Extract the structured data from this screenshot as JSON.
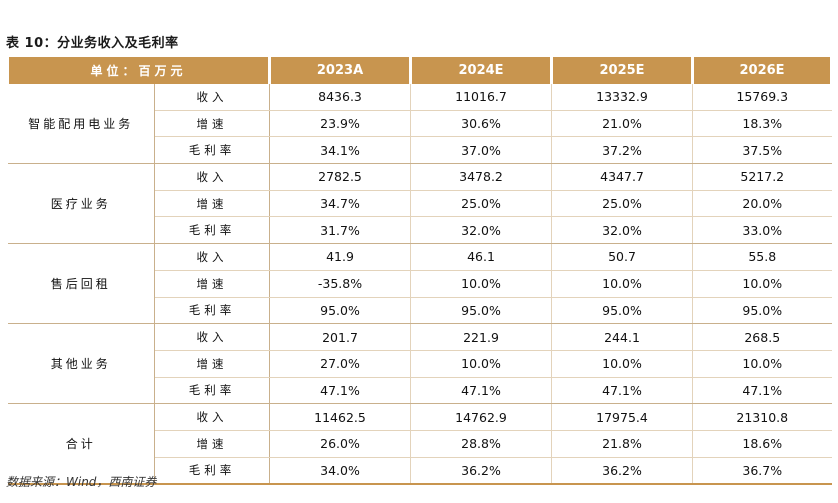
{
  "title": "表 10：分业务收入及毛利率",
  "header": {
    "unit_label": "单位：百万元",
    "years": [
      "2023A",
      "2024E",
      "2025E",
      "2026E"
    ]
  },
  "segments": [
    {
      "name": "智能配用电业务",
      "rows": [
        {
          "metric": "收入",
          "values": [
            "8436.3",
            "11016.7",
            "13332.9",
            "15769.3"
          ]
        },
        {
          "metric": "增速",
          "values": [
            "23.9%",
            "30.6%",
            "21.0%",
            "18.3%"
          ]
        },
        {
          "metric": "毛利率",
          "values": [
            "34.1%",
            "37.0%",
            "37.2%",
            "37.5%"
          ]
        }
      ]
    },
    {
      "name": "医疗业务",
      "rows": [
        {
          "metric": "收入",
          "values": [
            "2782.5",
            "3478.2",
            "4347.7",
            "5217.2"
          ]
        },
        {
          "metric": "增速",
          "values": [
            "34.7%",
            "25.0%",
            "25.0%",
            "20.0%"
          ]
        },
        {
          "metric": "毛利率",
          "values": [
            "31.7%",
            "32.0%",
            "32.0%",
            "33.0%"
          ]
        }
      ]
    },
    {
      "name": "售后回租",
      "rows": [
        {
          "metric": "收入",
          "values": [
            "41.9",
            "46.1",
            "50.7",
            "55.8"
          ]
        },
        {
          "metric": "增速",
          "values": [
            "-35.8%",
            "10.0%",
            "10.0%",
            "10.0%"
          ]
        },
        {
          "metric": "毛利率",
          "values": [
            "95.0%",
            "95.0%",
            "95.0%",
            "95.0%"
          ]
        }
      ]
    },
    {
      "name": "其他业务",
      "rows": [
        {
          "metric": "收入",
          "values": [
            "201.7",
            "221.9",
            "244.1",
            "268.5"
          ]
        },
        {
          "metric": "增速",
          "values": [
            "27.0%",
            "10.0%",
            "10.0%",
            "10.0%"
          ]
        },
        {
          "metric": "毛利率",
          "values": [
            "47.1%",
            "47.1%",
            "47.1%",
            "47.1%"
          ]
        }
      ]
    },
    {
      "name": "合计",
      "rows": [
        {
          "metric": "收入",
          "values": [
            "11462.5",
            "14762.9",
            "17975.4",
            "21310.8"
          ]
        },
        {
          "metric": "增速",
          "values": [
            "26.0%",
            "28.8%",
            "21.8%",
            "18.6%"
          ]
        },
        {
          "metric": "毛利率",
          "values": [
            "34.0%",
            "36.2%",
            "36.2%",
            "36.7%"
          ]
        }
      ]
    }
  ],
  "source": "数据来源：Wind，西南证券",
  "colors": {
    "header_bg": "#c8954f",
    "rule": "#c8954f",
    "grid": "#e3d3bb"
  }
}
